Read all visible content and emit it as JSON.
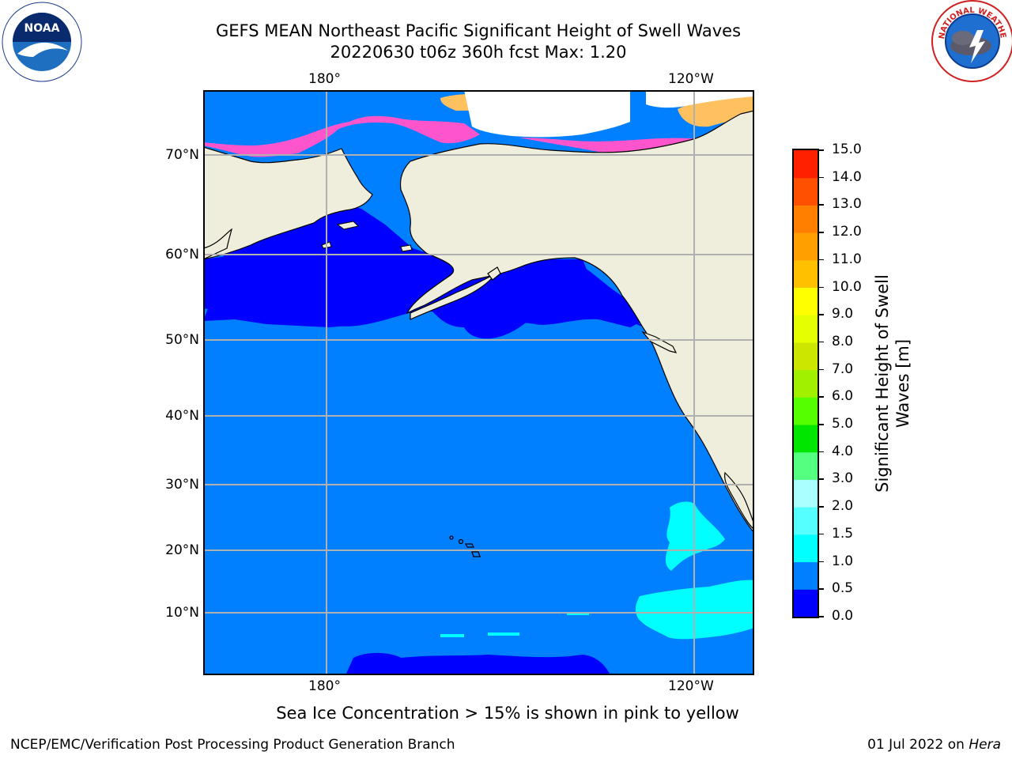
{
  "title": {
    "line1": "GEFS MEAN Northeast Pacific Significant Height of Swell Waves",
    "line2": "20220630 t06z 360h fcst   Max: 1.20"
  },
  "map": {
    "lon_labels": [
      "180°",
      "120°W"
    ],
    "lat_labels": [
      "70°N",
      "60°N",
      "50°N",
      "40°N",
      "30°N",
      "20°N",
      "10°N"
    ],
    "colors": {
      "land": "#efeedc",
      "ocean_0_0_5": "#0000ff",
      "ocean_0_5_1_0": "#0080ff",
      "ocean_1_0_1_5": "#00ffff",
      "grid": "#b0b0b0",
      "ice_pink": "#ff55cc",
      "ice_orange": "#ffc060"
    }
  },
  "colorbar": {
    "title": "Significant Height of Swell Waves [m]",
    "ticks": [
      "0.0",
      "0.5",
      "1.0",
      "1.5",
      "2.0",
      "3.0",
      "4.0",
      "5.0",
      "6.0",
      "7.0",
      "8.0",
      "9.0",
      "10.0",
      "11.0",
      "12.0",
      "13.0",
      "14.0",
      "15.0"
    ],
    "colors": [
      "#0000ff",
      "#0080ff",
      "#00ffff",
      "#55ffff",
      "#aaffff",
      "#55ff80",
      "#00e600",
      "#55ff00",
      "#a0f000",
      "#cce600",
      "#e6ff00",
      "#ffff00",
      "#ffc000",
      "#ffa000",
      "#ff8000",
      "#ff5000",
      "#ff2000"
    ]
  },
  "note": "Sea Ice Concentration > 15% is shown in pink to yellow",
  "footer": {
    "left": "NCEP/EMC/Verification Post Processing Product Generation Branch",
    "date": "01 Jul 2022 on ",
    "system": "Hera"
  },
  "logos": {
    "noaa": "NOAA",
    "nws": "NATIONAL WEATHER SERVICE"
  }
}
